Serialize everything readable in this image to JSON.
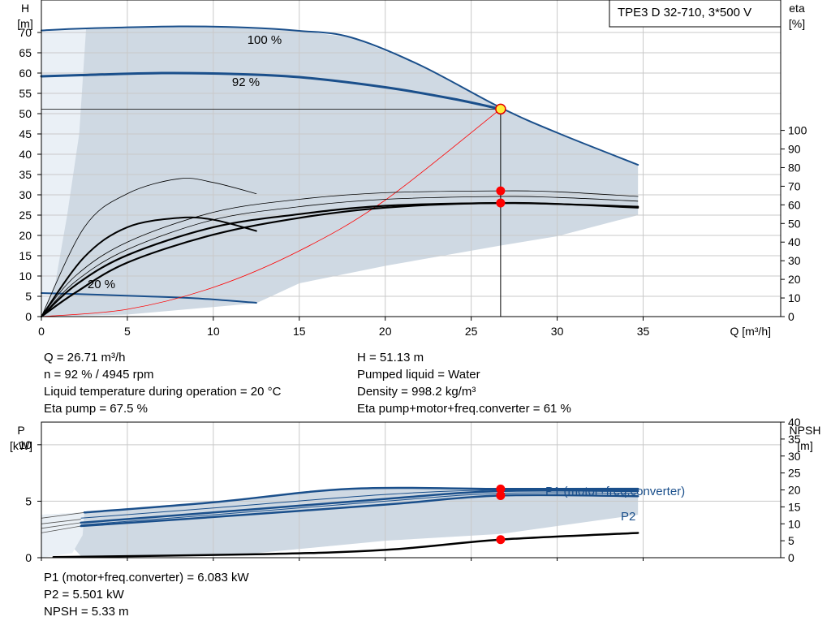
{
  "chart_data": [
    {
      "type": "line",
      "title": "TPE3 D 32-710, 3*500 V",
      "x_axis": {
        "label": "Q [m³/h]",
        "range": [
          0,
          43
        ],
        "ticks": [
          0,
          5,
          10,
          15,
          20,
          25,
          30,
          35
        ]
      },
      "y_axis_left": {
        "label_line1": "H",
        "label_line2": "[m]",
        "range": [
          0,
          78
        ],
        "ticks": [
          0,
          5,
          10,
          15,
          20,
          25,
          30,
          35,
          40,
          45,
          50,
          55,
          60,
          65,
          70
        ]
      },
      "y_axis_right": {
        "label_line1": "eta",
        "label_line2": "[%]",
        "range": [
          0,
          170
        ],
        "ticks": [
          0,
          10,
          20,
          30,
          40,
          50,
          60,
          70,
          80,
          90,
          100
        ]
      },
      "grid": true,
      "operating_region": {
        "upper": [
          [
            0,
            70.5
          ],
          [
            2.6,
            71
          ],
          [
            8,
            71.5
          ],
          [
            12,
            71.2
          ],
          [
            15,
            70.4
          ],
          [
            18,
            68.8
          ],
          [
            22,
            62
          ],
          [
            26.7,
            51.5
          ],
          [
            30,
            45.3
          ],
          [
            34.7,
            37.4
          ]
        ],
        "lower": [
          [
            34.7,
            25
          ],
          [
            30,
            19.8
          ],
          [
            26.7,
            17.5
          ],
          [
            20,
            12.5
          ],
          [
            15,
            8.2
          ],
          [
            12.5,
            3.3
          ],
          [
            5,
            0.5
          ],
          [
            0,
            0
          ]
        ]
      },
      "series": [
        {
          "name": "100 %",
          "kind": "head",
          "points": [
            [
              0,
              70.5
            ],
            [
              2.6,
              71
            ],
            [
              8,
              71.5
            ],
            [
              12,
              71.2
            ],
            [
              15,
              70.4
            ],
            [
              18,
              68.8
            ],
            [
              22,
              62
            ],
            [
              26.7,
              51.5
            ],
            [
              30,
              45.3
            ],
            [
              34.7,
              37.4
            ]
          ]
        },
        {
          "name": "92 %",
          "kind": "head",
          "points": [
            [
              0,
              59.2
            ],
            [
              2.3,
              59.5
            ],
            [
              7,
              60
            ],
            [
              11,
              59.8
            ],
            [
              15,
              59
            ],
            [
              20,
              56.5
            ],
            [
              24,
              53.6
            ],
            [
              26.7,
              51.13
            ]
          ]
        },
        {
          "name": "20 %",
          "kind": "head",
          "points": [
            [
              0,
              5.8
            ],
            [
              2.5,
              5.5
            ],
            [
              6,
              5
            ],
            [
              9,
              4.5
            ],
            [
              12.5,
              3.4
            ]
          ]
        },
        {
          "name": "",
          "kind": "system",
          "points": [
            [
              0,
              0
            ],
            [
              5,
              1.8
            ],
            [
              10,
              7.2
            ],
            [
              15,
              16.2
            ],
            [
              20,
              28.7
            ],
            [
              26.7,
              51.13
            ]
          ]
        },
        {
          "name": "",
          "kind": "eta",
          "points": [
            [
              0,
              0
            ],
            [
              2,
              22
            ],
            [
              5,
              40
            ],
            [
              10,
              56
            ],
            [
              15,
              63
            ],
            [
              20,
              66.5
            ],
            [
              26.7,
              67.5
            ],
            [
              30,
              67
            ],
            [
              34.7,
              64.5
            ]
          ]
        },
        {
          "name": "",
          "kind": "eta",
          "points": [
            [
              0,
              0
            ],
            [
              2,
              17
            ],
            [
              5,
              33
            ],
            [
              10,
              48
            ],
            [
              15,
              55
            ],
            [
              20,
              59.5
            ],
            [
              26.7,
              61
            ],
            [
              30,
              60.5
            ],
            [
              34.7,
              58.5
            ]
          ]
        },
        {
          "name": "",
          "kind": "eta",
          "points": [
            [
              0,
              0
            ],
            [
              2,
              13
            ],
            [
              5,
              29
            ],
            [
              10,
              44
            ],
            [
              15,
              53
            ],
            [
              20,
              58.5
            ],
            [
              26.7,
              61
            ],
            [
              34.7,
              59
            ]
          ]
        },
        {
          "name": "",
          "kind": "eta",
          "points": [
            [
              0,
              0
            ],
            [
              2.5,
              32
            ],
            [
              5,
              48
            ],
            [
              8,
              53
            ],
            [
              10,
              52
            ],
            [
              12.5,
              46
            ]
          ]
        },
        {
          "name": "",
          "kind": "eta",
          "points": [
            [
              0,
              0
            ],
            [
              2.5,
              48
            ],
            [
              5,
              66
            ],
            [
              8,
              74
            ],
            [
              10,
              72
            ],
            [
              12.5,
              66
            ]
          ]
        }
      ],
      "operating_point": {
        "x": 26.71,
        "y": 51.13,
        "eta_pump": 67.5,
        "eta_total": 61
      }
    },
    {
      "type": "line",
      "x_axis": {
        "range": [
          0,
          43
        ]
      },
      "y_axis_left": {
        "label_line1": "P",
        "label_line2": "[kW]",
        "range": [
          0,
          12
        ],
        "ticks": [
          0,
          5,
          10
        ]
      },
      "y_axis_right": {
        "label_line1": "NPSH",
        "label_line2": "[m]",
        "range": [
          0,
          40
        ],
        "ticks": [
          0,
          5,
          10,
          15,
          20,
          25,
          30,
          35,
          40
        ]
      },
      "grid": true,
      "region": {
        "upper": [
          [
            0,
            3.8
          ],
          [
            2.5,
            4
          ],
          [
            18,
            6.1
          ],
          [
            26.7,
            6.1
          ],
          [
            34.7,
            6.1
          ]
        ],
        "lower": [
          [
            34.7,
            3.8
          ],
          [
            30,
            2.8
          ],
          [
            26.7,
            2.1
          ],
          [
            20,
            1.5
          ],
          [
            12.5,
            0.4
          ],
          [
            2.4,
            0
          ]
        ]
      },
      "series": [
        {
          "name": "P1 (motor+freq.converter)",
          "kind": "power",
          "points": [
            [
              2.5,
              4
            ],
            [
              10,
              4.9
            ],
            [
              18,
              6.1
            ],
            [
              26.7,
              6.083
            ],
            [
              34.7,
              6.1
            ]
          ]
        },
        {
          "name": "",
          "kind": "power",
          "points": [
            [
              2.3,
              3.1
            ],
            [
              10,
              4
            ],
            [
              20,
              5.2
            ],
            [
              26.7,
              5.9
            ],
            [
              34.7,
              5.9
            ]
          ]
        },
        {
          "name": "P2",
          "kind": "power",
          "points": [
            [
              2.3,
              2.8
            ],
            [
              10,
              3.6
            ],
            [
              20,
              4.7
            ],
            [
              26.7,
              5.501
            ],
            [
              34.7,
              5.45
            ]
          ]
        },
        {
          "name": "",
          "kind": "npsh",
          "points": [
            [
              0.7,
              0.2
            ],
            [
              12.5,
              1
            ],
            [
              20,
              2.3
            ],
            [
              26.7,
              5.33
            ],
            [
              34.7,
              7.3
            ]
          ]
        }
      ],
      "operating_points": [
        {
          "x": 26.71,
          "y": 6.083,
          "axis": "left"
        },
        {
          "x": 26.71,
          "y": 5.501,
          "axis": "left"
        },
        {
          "x": 26.71,
          "y": 5.33,
          "axis": "right"
        }
      ]
    }
  ],
  "info_top_left": [
    "Q = 26.71 m³/h",
    "n = 92 % / 4945 rpm",
    "Liquid temperature during operation = 20 °C",
    "Eta pump = 67.5 %"
  ],
  "info_top_right": [
    "H = 51.13 m",
    "Pumped liquid = Water",
    "Density = 998.2 kg/m³",
    "Eta pump+motor+freq.converter = 61 %"
  ],
  "info_bottom": [
    "P1 (motor+freq.converter) = 6.083 kW",
    "P2 = 5.501 kW",
    "NPSH = 5.33 m"
  ],
  "colors": {
    "curve": "#1a4f8b",
    "region": "#cfd9e3",
    "point": "#ff0000",
    "grid": "#c9c9c9"
  }
}
